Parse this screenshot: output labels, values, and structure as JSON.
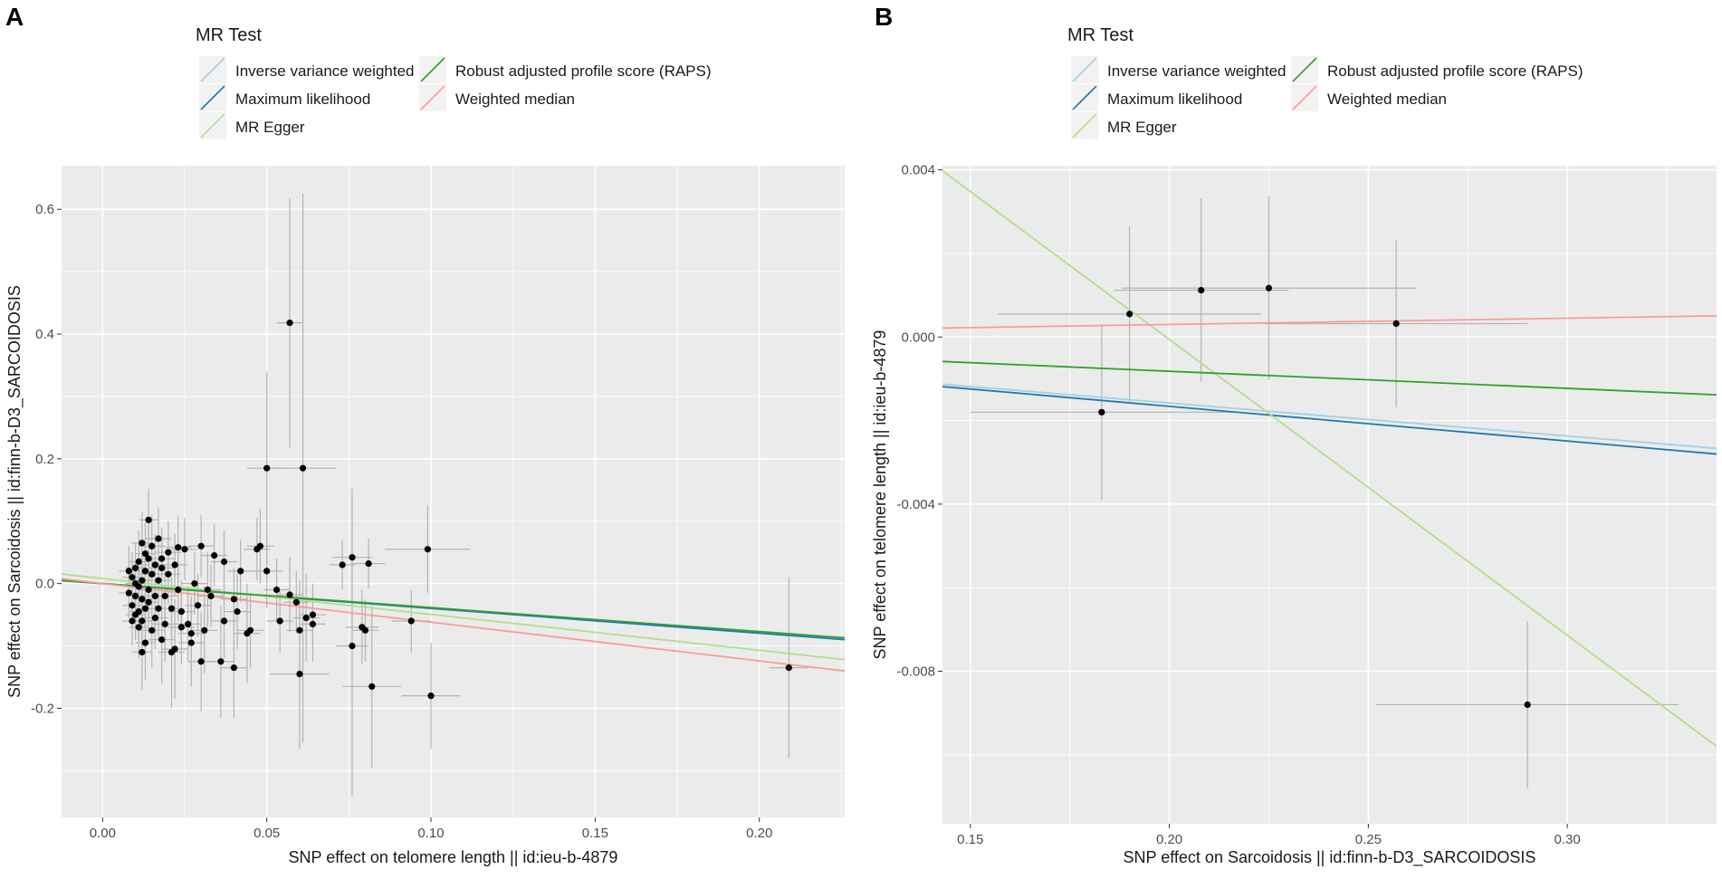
{
  "chart_data": [
    {
      "panel_label": "A",
      "type": "scatter",
      "legend": {
        "title": "MR Test",
        "entries": [
          {
            "label": "Inverse variance weighted",
            "color": "#a6cee3"
          },
          {
            "label": "Maximum likelihood",
            "color": "#1f78b4"
          },
          {
            "label": "MR Egger",
            "color": "#b2df8a"
          },
          {
            "label": "Robust adjusted profile score (RAPS)",
            "color": "#33a02c"
          },
          {
            "label": "Weighted median",
            "color": "#fb9a99"
          }
        ]
      },
      "xlabel": "SNP effect on telomere length || id:ieu-b-4879",
      "ylabel": "SNP effect on Sarcoidosis || id:finn-b-D3_SARCOIDOSIS",
      "xlim": [
        -0.0125,
        0.226
      ],
      "ylim": [
        -0.375,
        0.67
      ],
      "x_ticks": [
        0.0,
        0.05,
        0.1,
        0.15,
        0.2
      ],
      "x_tick_labels": [
        "0.00",
        "0.05",
        "0.10",
        "0.15",
        "0.20"
      ],
      "y_ticks": [
        -0.2,
        0.0,
        0.2,
        0.4,
        0.6
      ],
      "y_tick_labels": [
        "-0.2",
        "0.0",
        "0.2",
        "0.4",
        "0.6"
      ],
      "lines": [
        {
          "method": "Inverse variance weighted",
          "intercept": 0.0,
          "slope": -0.393
        },
        {
          "method": "Maximum likelihood",
          "intercept": 0.0,
          "slope": -0.398
        },
        {
          "method": "MR Egger",
          "intercept": 0.008,
          "slope": -0.575
        },
        {
          "method": "Robust adjusted profile score (RAPS)",
          "intercept": 0.0,
          "slope": -0.385
        },
        {
          "method": "Weighted median",
          "intercept": 0.0,
          "slope": -0.62
        }
      ],
      "points": [
        {
          "x": 0.057,
          "y": 0.418,
          "xse": 0.004,
          "yse": 0.2
        },
        {
          "x": 0.05,
          "y": 0.185,
          "xse": 0.006,
          "yse": 0.155
        },
        {
          "x": 0.061,
          "y": 0.185,
          "xse": 0.01,
          "yse": 0.44
        },
        {
          "x": 0.099,
          "y": 0.055,
          "xse": 0.013,
          "yse": 0.07
        },
        {
          "x": 0.076,
          "y": 0.042,
          "xse": 0.006,
          "yse": 0.11
        },
        {
          "x": 0.081,
          "y": 0.032,
          "xse": 0.005,
          "yse": 0.04
        },
        {
          "x": 0.073,
          "y": 0.03,
          "xse": 0.004,
          "yse": 0.04
        },
        {
          "x": 0.048,
          "y": 0.06,
          "xse": 0.004,
          "yse": 0.06
        },
        {
          "x": 0.047,
          "y": 0.055,
          "xse": 0.004,
          "yse": 0.05
        },
        {
          "x": 0.05,
          "y": 0.02,
          "xse": 0.005,
          "yse": 0.06
        },
        {
          "x": 0.057,
          "y": -0.018,
          "xse": 0.004,
          "yse": 0.06
        },
        {
          "x": 0.094,
          "y": -0.06,
          "xse": 0.006,
          "yse": 0.05
        },
        {
          "x": 0.076,
          "y": -0.1,
          "xse": 0.005,
          "yse": 0.24
        },
        {
          "x": 0.079,
          "y": -0.07,
          "xse": 0.005,
          "yse": 0.06
        },
        {
          "x": 0.08,
          "y": -0.075,
          "xse": 0.004,
          "yse": 0.05
        },
        {
          "x": 0.06,
          "y": -0.145,
          "xse": 0.009,
          "yse": 0.12
        },
        {
          "x": 0.082,
          "y": -0.165,
          "xse": 0.009,
          "yse": 0.13
        },
        {
          "x": 0.1,
          "y": -0.18,
          "xse": 0.009,
          "yse": 0.085
        },
        {
          "x": 0.209,
          "y": -0.135,
          "xse": 0.006,
          "yse": 0.145
        },
        {
          "x": 0.059,
          "y": -0.03,
          "xse": 0.004,
          "yse": 0.05
        },
        {
          "x": 0.06,
          "y": -0.075,
          "xse": 0.004,
          "yse": 0.08
        },
        {
          "x": 0.062,
          "y": -0.055,
          "xse": 0.004,
          "yse": 0.07
        },
        {
          "x": 0.064,
          "y": -0.05,
          "xse": 0.004,
          "yse": 0.05
        },
        {
          "x": 0.064,
          "y": -0.065,
          "xse": 0.004,
          "yse": 0.06
        },
        {
          "x": 0.054,
          "y": -0.06,
          "xse": 0.004,
          "yse": 0.05
        },
        {
          "x": 0.053,
          "y": -0.01,
          "xse": 0.004,
          "yse": 0.05
        },
        {
          "x": 0.045,
          "y": -0.075,
          "xse": 0.004,
          "yse": 0.06
        },
        {
          "x": 0.044,
          "y": -0.08,
          "xse": 0.004,
          "yse": 0.08
        },
        {
          "x": 0.042,
          "y": 0.02,
          "xse": 0.004,
          "yse": 0.05
        },
        {
          "x": 0.04,
          "y": -0.025,
          "xse": 0.004,
          "yse": 0.05
        },
        {
          "x": 0.041,
          "y": -0.045,
          "xse": 0.004,
          "yse": 0.06
        },
        {
          "x": 0.04,
          "y": -0.135,
          "xse": 0.004,
          "yse": 0.08
        },
        {
          "x": 0.036,
          "y": -0.125,
          "xse": 0.004,
          "yse": 0.09
        },
        {
          "x": 0.037,
          "y": 0.035,
          "xse": 0.004,
          "yse": 0.05
        },
        {
          "x": 0.037,
          "y": -0.06,
          "xse": 0.004,
          "yse": 0.06
        },
        {
          "x": 0.034,
          "y": 0.045,
          "xse": 0.004,
          "yse": 0.05
        },
        {
          "x": 0.033,
          "y": -0.02,
          "xse": 0.004,
          "yse": 0.05
        },
        {
          "x": 0.032,
          "y": -0.01,
          "xse": 0.004,
          "yse": 0.06
        },
        {
          "x": 0.031,
          "y": -0.075,
          "xse": 0.004,
          "yse": 0.07
        },
        {
          "x": 0.03,
          "y": 0.06,
          "xse": 0.004,
          "yse": 0.05
        },
        {
          "x": 0.03,
          "y": -0.125,
          "xse": 0.004,
          "yse": 0.08
        },
        {
          "x": 0.029,
          "y": -0.035,
          "xse": 0.004,
          "yse": 0.05
        },
        {
          "x": 0.028,
          "y": 0.0,
          "xse": 0.004,
          "yse": 0.05
        },
        {
          "x": 0.027,
          "y": -0.08,
          "xse": 0.004,
          "yse": 0.06
        },
        {
          "x": 0.027,
          "y": -0.095,
          "xse": 0.004,
          "yse": 0.07
        },
        {
          "x": 0.026,
          "y": -0.065,
          "xse": 0.004,
          "yse": 0.06
        },
        {
          "x": 0.025,
          "y": 0.055,
          "xse": 0.004,
          "yse": 0.05
        },
        {
          "x": 0.024,
          "y": -0.045,
          "xse": 0.004,
          "yse": 0.05
        },
        {
          "x": 0.024,
          "y": -0.07,
          "xse": 0.004,
          "yse": 0.06
        },
        {
          "x": 0.023,
          "y": 0.058,
          "xse": 0.004,
          "yse": 0.05
        },
        {
          "x": 0.023,
          "y": -0.01,
          "xse": 0.004,
          "yse": 0.05
        },
        {
          "x": 0.022,
          "y": -0.105,
          "xse": 0.004,
          "yse": 0.08
        },
        {
          "x": 0.022,
          "y": 0.03,
          "xse": 0.004,
          "yse": 0.05
        },
        {
          "x": 0.021,
          "y": -0.04,
          "xse": 0.004,
          "yse": 0.05
        },
        {
          "x": 0.021,
          "y": -0.11,
          "xse": 0.004,
          "yse": 0.09
        },
        {
          "x": 0.02,
          "y": 0.05,
          "xse": 0.004,
          "yse": 0.05
        },
        {
          "x": 0.02,
          "y": 0.015,
          "xse": 0.004,
          "yse": 0.05
        },
        {
          "x": 0.019,
          "y": -0.02,
          "xse": 0.004,
          "yse": 0.05
        },
        {
          "x": 0.019,
          "y": -0.065,
          "xse": 0.004,
          "yse": 0.06
        },
        {
          "x": 0.018,
          "y": 0.04,
          "xse": 0.004,
          "yse": 0.05
        },
        {
          "x": 0.018,
          "y": 0.025,
          "xse": 0.004,
          "yse": 0.05
        },
        {
          "x": 0.018,
          "y": -0.09,
          "xse": 0.004,
          "yse": 0.07
        },
        {
          "x": 0.017,
          "y": 0.072,
          "xse": 0.004,
          "yse": 0.05
        },
        {
          "x": 0.017,
          "y": 0.005,
          "xse": 0.004,
          "yse": 0.05
        },
        {
          "x": 0.017,
          "y": -0.04,
          "xse": 0.004,
          "yse": 0.05
        },
        {
          "x": 0.016,
          "y": 0.03,
          "xse": 0.004,
          "yse": 0.05
        },
        {
          "x": 0.016,
          "y": -0.02,
          "xse": 0.004,
          "yse": 0.05
        },
        {
          "x": 0.016,
          "y": -0.055,
          "xse": 0.004,
          "yse": 0.05
        },
        {
          "x": 0.015,
          "y": 0.015,
          "xse": 0.004,
          "yse": 0.05
        },
        {
          "x": 0.015,
          "y": 0.06,
          "xse": 0.004,
          "yse": 0.05
        },
        {
          "x": 0.015,
          "y": -0.075,
          "xse": 0.004,
          "yse": 0.06
        },
        {
          "x": 0.014,
          "y": 0.102,
          "xse": 0.003,
          "yse": 0.05
        },
        {
          "x": 0.014,
          "y": 0.04,
          "xse": 0.003,
          "yse": 0.05
        },
        {
          "x": 0.014,
          "y": -0.01,
          "xse": 0.003,
          "yse": 0.05
        },
        {
          "x": 0.014,
          "y": -0.03,
          "xse": 0.003,
          "yse": 0.05
        },
        {
          "x": 0.013,
          "y": 0.048,
          "xse": 0.003,
          "yse": 0.05
        },
        {
          "x": 0.013,
          "y": 0.02,
          "xse": 0.003,
          "yse": 0.05
        },
        {
          "x": 0.013,
          "y": -0.04,
          "xse": 0.003,
          "yse": 0.05
        },
        {
          "x": 0.013,
          "y": -0.095,
          "xse": 0.003,
          "yse": 0.06
        },
        {
          "x": 0.012,
          "y": 0.065,
          "xse": 0.003,
          "yse": 0.05
        },
        {
          "x": 0.012,
          "y": 0.005,
          "xse": 0.003,
          "yse": 0.05
        },
        {
          "x": 0.012,
          "y": -0.025,
          "xse": 0.003,
          "yse": 0.05
        },
        {
          "x": 0.012,
          "y": -0.06,
          "xse": 0.003,
          "yse": 0.05
        },
        {
          "x": 0.012,
          "y": -0.11,
          "xse": 0.003,
          "yse": 0.06
        },
        {
          "x": 0.011,
          "y": 0.035,
          "xse": 0.003,
          "yse": 0.05
        },
        {
          "x": 0.011,
          "y": -0.005,
          "xse": 0.003,
          "yse": 0.05
        },
        {
          "x": 0.011,
          "y": -0.045,
          "xse": 0.003,
          "yse": 0.05
        },
        {
          "x": 0.011,
          "y": -0.07,
          "xse": 0.003,
          "yse": 0.05
        },
        {
          "x": 0.01,
          "y": 0.025,
          "xse": 0.003,
          "yse": 0.04
        },
        {
          "x": 0.01,
          "y": 0.0,
          "xse": 0.003,
          "yse": 0.04
        },
        {
          "x": 0.01,
          "y": -0.02,
          "xse": 0.003,
          "yse": 0.04
        },
        {
          "x": 0.01,
          "y": -0.05,
          "xse": 0.003,
          "yse": 0.04
        },
        {
          "x": 0.009,
          "y": 0.01,
          "xse": 0.003,
          "yse": 0.04
        },
        {
          "x": 0.009,
          "y": -0.035,
          "xse": 0.003,
          "yse": 0.04
        },
        {
          "x": 0.009,
          "y": -0.06,
          "xse": 0.003,
          "yse": 0.04
        },
        {
          "x": 0.008,
          "y": 0.02,
          "xse": 0.003,
          "yse": 0.04
        },
        {
          "x": 0.008,
          "y": -0.015,
          "xse": 0.003,
          "yse": 0.04
        }
      ]
    },
    {
      "panel_label": "B",
      "type": "scatter",
      "legend": {
        "title": "MR Test",
        "entries": [
          {
            "label": "Inverse variance weighted",
            "color": "#a6cee3"
          },
          {
            "label": "Maximum likelihood",
            "color": "#1f78b4"
          },
          {
            "label": "MR Egger",
            "color": "#b2df8a"
          },
          {
            "label": "Robust adjusted profile score (RAPS)",
            "color": "#33a02c"
          },
          {
            "label": "Weighted median",
            "color": "#fb9a99"
          }
        ]
      },
      "xlabel": "SNP effect on Sarcoidosis || id:finn-b-D3_SARCOIDOSIS",
      "ylabel": "SNP effect on telomere length || id:ieu-b-4879",
      "xlim": [
        0.143,
        0.3375
      ],
      "ylim": [
        -0.01165,
        0.0041
      ],
      "x_ticks": [
        0.15,
        0.2,
        0.25,
        0.3
      ],
      "x_tick_labels": [
        "0.15",
        "0.20",
        "0.25",
        "0.30"
      ],
      "y_ticks": [
        -0.008,
        -0.004,
        0.0,
        0.004
      ],
      "y_tick_labels": [
        "-0.008",
        "-0.004",
        "0.000",
        "0.004"
      ],
      "lines": [
        {
          "method": "Inverse variance weighted",
          "intercept": 0.0,
          "slope": -0.0079
        },
        {
          "method": "Maximum likelihood",
          "intercept": 0.0,
          "slope": -0.0083
        },
        {
          "method": "MR Egger",
          "intercept": 0.0141,
          "slope": -0.0708
        },
        {
          "method": "Robust adjusted profile score (RAPS)",
          "intercept": 0.0,
          "slope": -0.0041
        },
        {
          "method": "Weighted median",
          "intercept": 0.0,
          "slope": 0.0015
        }
      ],
      "points": [
        {
          "x": 0.19,
          "y": 0.00055,
          "xse": 0.033,
          "yse": 0.0021
        },
        {
          "x": 0.208,
          "y": 0.00112,
          "xse": 0.022,
          "yse": 0.0022
        },
        {
          "x": 0.225,
          "y": 0.00117,
          "xse": 0.037,
          "yse": 0.0022
        },
        {
          "x": 0.257,
          "y": 0.00032,
          "xse": 0.033,
          "yse": 0.002
        },
        {
          "x": 0.183,
          "y": -0.0018,
          "xse": 0.033,
          "yse": 0.0021
        },
        {
          "x": 0.29,
          "y": -0.0088,
          "xse": 0.038,
          "yse": 0.002
        }
      ]
    }
  ]
}
